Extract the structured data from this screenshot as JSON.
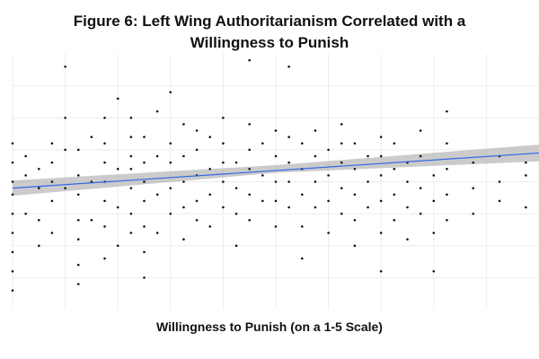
{
  "chart_data": {
    "type": "scatter",
    "title_lines": [
      "Figure 6: Left Wing Authoritarianism Correlated with a",
      "Willingness to Punish"
    ],
    "xlabel": "Willingness to Punish (on a 1-5 Scale)",
    "ylabel": "",
    "xlim": [
      1,
      5
    ],
    "ylim": [
      1,
      5
    ],
    "grid": true,
    "x_gridlines": [
      1.0,
      1.4,
      1.8,
      2.2,
      2.6,
      3.0,
      3.4,
      3.8,
      4.2,
      4.6,
      5.0
    ],
    "y_gridlines": [
      1.5,
      2.0,
      2.5,
      3.0,
      3.5,
      4.0,
      4.5
    ],
    "x_columns": [
      1.0,
      1.1,
      1.2,
      1.3,
      1.4,
      1.5,
      1.6,
      1.7,
      1.8,
      1.9,
      2.0,
      2.1,
      2.2,
      2.3,
      2.4,
      2.5,
      2.6,
      2.7,
      2.8,
      2.9,
      3.0,
      3.1,
      3.2,
      3.3,
      3.4,
      3.5,
      3.6,
      3.7,
      3.8,
      3.9,
      4.0,
      4.1,
      4.2,
      4.3,
      4.5,
      4.7,
      4.9
    ],
    "point_rows": [
      [
        1.3,
        1.6,
        1.9,
        2.2,
        2.5,
        2.8,
        3.0,
        3.3,
        3.6
      ],
      [
        2.5,
        3.1,
        3.4
      ],
      [
        2.0,
        2.4,
        2.9,
        3.2
      ],
      [
        2.2,
        2.7,
        3.0,
        3.3,
        3.6
      ],
      [
        2.9,
        3.5,
        4.0,
        4.8
      ],
      [
        1.4,
        1.7,
        2.1,
        2.4,
        2.8,
        3.1,
        3.5
      ],
      [
        2.4,
        3.0,
        3.7
      ],
      [
        1.8,
        2.3,
        2.7,
        3.0,
        3.3,
        3.6,
        4.0
      ],
      [
        2.0,
        2.6,
        3.2,
        4.3
      ],
      [
        2.2,
        2.5,
        2.9,
        3.2,
        3.4,
        3.7,
        4.0
      ],
      [
        1.5,
        1.9,
        2.3,
        2.7,
        3.0,
        3.3,
        3.7
      ],
      [
        2.2,
        2.8,
        3.4,
        4.1
      ],
      [
        2.5,
        2.9,
        3.3,
        3.6,
        4.4
      ],
      [
        2.1,
        2.6,
        3.0,
        3.4,
        3.9
      ],
      [
        2.4,
        2.7,
        3.1,
        3.5,
        3.8
      ],
      [
        2.3,
        2.8,
        3.2,
        3.7
      ],
      [
        2.6,
        3.0,
        3.3,
        3.6,
        4.0
      ],
      [
        2.0,
        2.5,
        2.9,
        3.3
      ],
      [
        2.4,
        2.8,
        3.2,
        3.5,
        3.9,
        4.9
      ],
      [
        2.7,
        3.1,
        3.6
      ],
      [
        2.3,
        2.7,
        3.0,
        3.4,
        3.8
      ],
      [
        2.6,
        3.0,
        3.3,
        3.7,
        4.8
      ],
      [
        1.8,
        2.3,
        2.8,
        3.2,
        3.6
      ],
      [
        2.6,
        3.0,
        3.4,
        3.8
      ],
      [
        2.2,
        2.7,
        3.1,
        3.5
      ],
      [
        2.5,
        2.9,
        3.3,
        3.6,
        3.9
      ],
      [
        2.0,
        2.4,
        2.8,
        3.2,
        3.6
      ],
      [
        2.6,
        3.0,
        3.4
      ],
      [
        1.6,
        2.2,
        2.7,
        3.1,
        3.4,
        3.7
      ],
      [
        2.4,
        2.8,
        3.2,
        3.6
      ],
      [
        2.1,
        2.6,
        3.0,
        3.3
      ],
      [
        2.5,
        2.9,
        3.4,
        3.8
      ],
      [
        1.6,
        2.2,
        2.7,
        3.1
      ],
      [
        2.4,
        2.8,
        3.2,
        3.6,
        4.1
      ],
      [
        2.5,
        2.9,
        3.3
      ],
      [
        2.7,
        3.0,
        3.4
      ],
      [
        2.6,
        3.1,
        3.3
      ]
    ],
    "trend_line": {
      "x": [
        1.0,
        5.0
      ],
      "y": [
        2.9,
        3.45
      ]
    },
    "confidence_band": {
      "x": [
        1.0,
        3.0,
        5.0
      ],
      "lower": [
        2.78,
        3.14,
        3.32
      ],
      "upper": [
        3.02,
        3.26,
        3.58
      ]
    },
    "colors": {
      "points": "#111111",
      "trend_line": "#3366e6",
      "band": "#b9b9b9",
      "grid": "#ececec"
    }
  }
}
